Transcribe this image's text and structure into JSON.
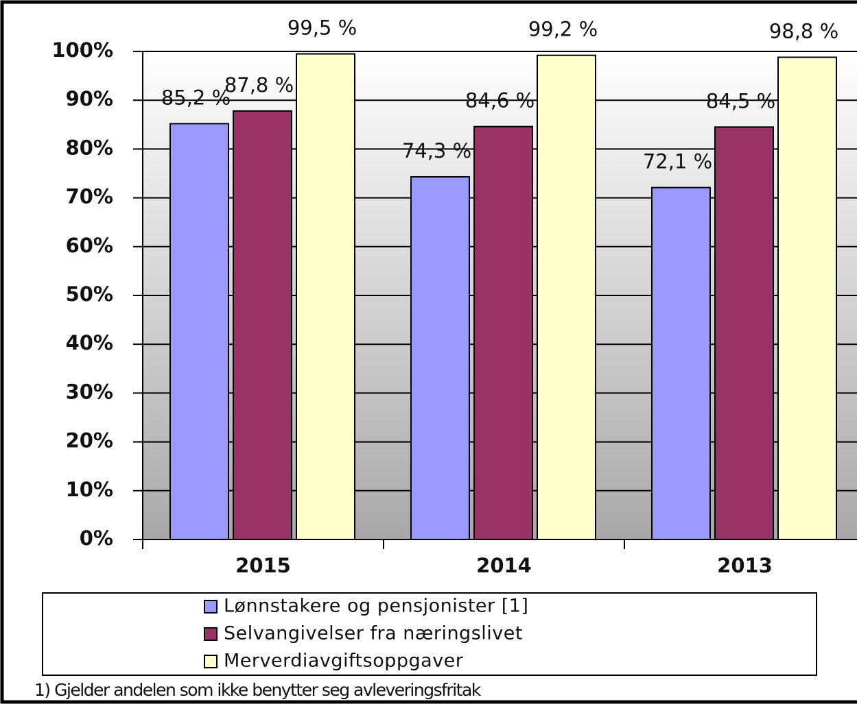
{
  "chart_data": {
    "type": "bar",
    "categories": [
      "2015",
      "2014",
      "2013"
    ],
    "series": [
      {
        "name": "Lønnstakere og pensjonister [1]",
        "color": "#9999ff",
        "values": [
          85.2,
          74.3,
          72.1
        ],
        "value_labels": [
          "85,2 %",
          "74,3 %",
          "72,1 %"
        ]
      },
      {
        "name": "Selvangivelser fra næringslivet",
        "color": "#993366",
        "values": [
          87.8,
          84.6,
          84.5
        ],
        "value_labels": [
          "87,8 %",
          "84,6 %",
          "84,5 %"
        ]
      },
      {
        "name": "Merverdiavgiftsoppgaver",
        "color": "#ffffcc",
        "values": [
          99.5,
          99.2,
          98.8
        ],
        "value_labels": [
          "99,5 %",
          "99,2 %",
          "98,8 %"
        ]
      }
    ],
    "ylim": [
      0,
      100
    ],
    "yticks": [
      {
        "value": 0,
        "label": "0%"
      },
      {
        "value": 10,
        "label": "10%"
      },
      {
        "value": 20,
        "label": "20%"
      },
      {
        "value": 30,
        "label": "30%"
      },
      {
        "value": 40,
        "label": "40%"
      },
      {
        "value": 50,
        "label": "50%"
      },
      {
        "value": 60,
        "label": "60%"
      },
      {
        "value": 70,
        "label": "70%"
      },
      {
        "value": 80,
        "label": "80%"
      },
      {
        "value": 90,
        "label": "90%"
      },
      {
        "value": 100,
        "label": "100%"
      }
    ],
    "grid": true,
    "legend": "bottom",
    "note": "1) Gjelder andelen som ikke benytter seg avleveringsfritak"
  }
}
